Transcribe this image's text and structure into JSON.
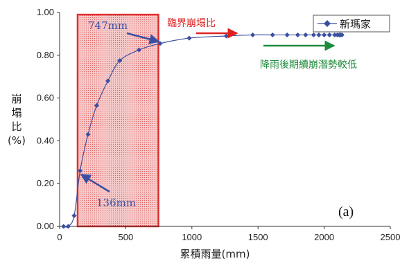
{
  "chart_data": {
    "type": "line",
    "title": "",
    "xlabel": "累積雨量(mm)",
    "ylabel": [
      "崩",
      "塌",
      "比",
      "(%)"
    ],
    "xlim": [
      0,
      2500
    ],
    "ylim": [
      0,
      1.0
    ],
    "x_ticks": [
      "0",
      "500",
      "1000",
      "1500",
      "2000",
      "2500"
    ],
    "y_ticks": [
      "0.00",
      "0.20",
      "0.40",
      "0.60",
      "0.80",
      "1.00"
    ],
    "grid": false,
    "legend_position": "top-right",
    "series": [
      {
        "name": "新瑪家",
        "color": "#3a4fa0",
        "x": [
          30,
          65,
          110,
          155,
          215,
          280,
          365,
          455,
          600,
          760,
          980,
          1260,
          1460,
          1610,
          1720,
          1800,
          1860,
          1920,
          1960,
          2000,
          2040,
          2080,
          2100,
          2115,
          2125,
          2135
        ],
        "y": [
          0.0,
          0.0,
          0.05,
          0.26,
          0.43,
          0.565,
          0.68,
          0.775,
          0.825,
          0.855,
          0.88,
          0.89,
          0.895,
          0.895,
          0.895,
          0.895,
          0.895,
          0.895,
          0.895,
          0.895,
          0.895,
          0.895,
          0.895,
          0.895,
          0.895,
          0.895
        ]
      }
    ],
    "highlight_region": {
      "x_range": [
        136,
        747
      ],
      "color": "#e03030"
    },
    "annotations": {
      "upper_threshold": "747mm",
      "lower_threshold": "136mm",
      "critical_ratio": "臨界崩塌比",
      "lower_potential": "降雨後期續崩潛勢較低",
      "panel_tag": "(a)"
    },
    "annotation_colors": {
      "threshold_text": "#3a4fa0",
      "critical_text": "#e02020",
      "potential_text": "#1e8a3a"
    }
  }
}
